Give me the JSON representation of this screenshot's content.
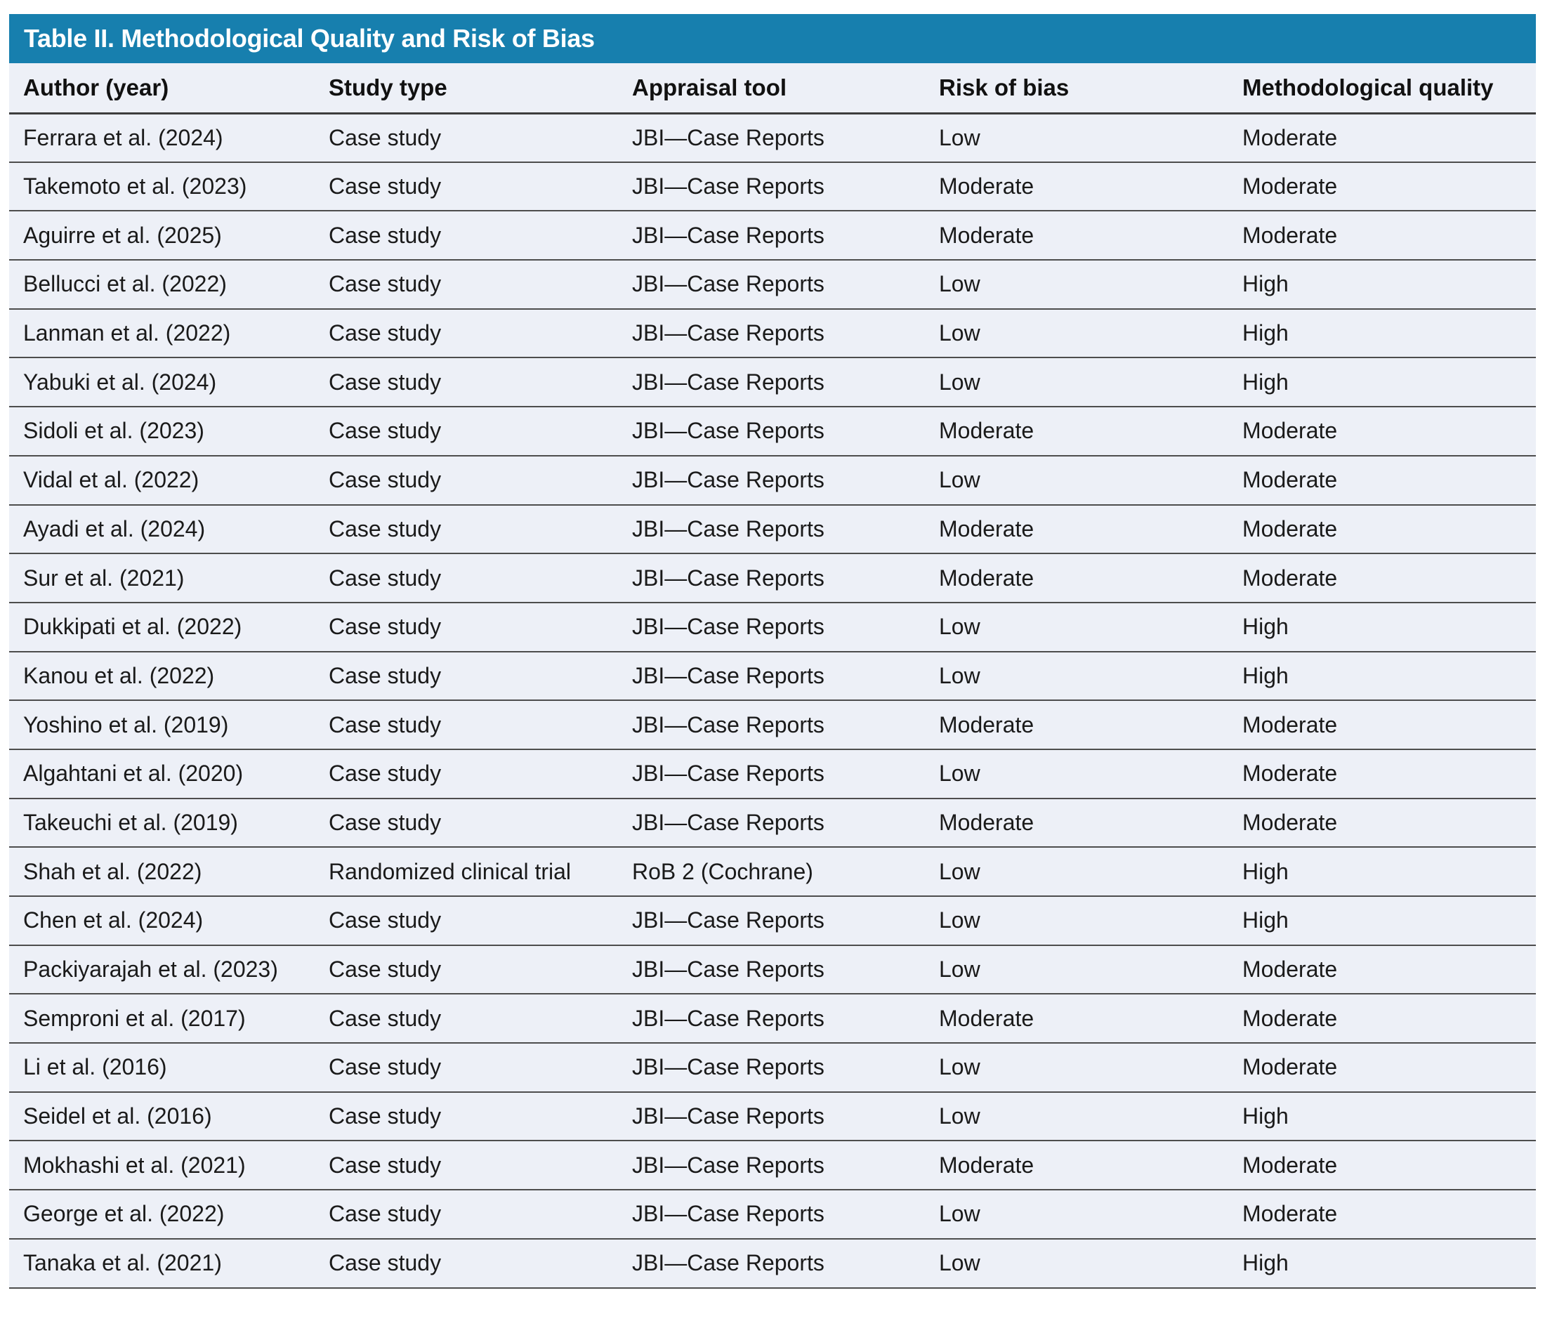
{
  "colors": {
    "title_bar_bg": "#177fae",
    "title_text": "#ffffff",
    "row_bg": "#edf0f7",
    "body_text": "#1a1a1a",
    "divider": "#4d4d4d"
  },
  "table": {
    "title": "Table II. Methodological Quality and Risk of Bias",
    "columns": [
      {
        "key": "author",
        "label": "Author (year)"
      },
      {
        "key": "study_type",
        "label": "Study type"
      },
      {
        "key": "appraisal_tool",
        "label": "Appraisal tool"
      },
      {
        "key": "risk_of_bias",
        "label": "Risk of bias"
      },
      {
        "key": "methodological_quality",
        "label": "Methodological quality"
      }
    ],
    "rows": [
      {
        "author": "Ferrara et al. (2024)",
        "study_type": "Case study",
        "appraisal_tool": "JBI—Case Reports",
        "risk_of_bias": "Low",
        "methodological_quality": "Moderate"
      },
      {
        "author": "Takemoto et al. (2023)",
        "study_type": "Case study",
        "appraisal_tool": "JBI—Case Reports",
        "risk_of_bias": "Moderate",
        "methodological_quality": "Moderate"
      },
      {
        "author": "Aguirre et al. (2025)",
        "study_type": "Case study",
        "appraisal_tool": "JBI—Case Reports",
        "risk_of_bias": "Moderate",
        "methodological_quality": "Moderate"
      },
      {
        "author": "Bellucci et al. (2022)",
        "study_type": "Case study",
        "appraisal_tool": "JBI—Case Reports",
        "risk_of_bias": "Low",
        "methodological_quality": "High"
      },
      {
        "author": "Lanman et al. (2022)",
        "study_type": "Case study",
        "appraisal_tool": "JBI—Case Reports",
        "risk_of_bias": "Low",
        "methodological_quality": "High"
      },
      {
        "author": "Yabuki et al. (2024)",
        "study_type": "Case study",
        "appraisal_tool": "JBI—Case Reports",
        "risk_of_bias": "Low",
        "methodological_quality": "High"
      },
      {
        "author": "Sidoli et al. (2023)",
        "study_type": "Case study",
        "appraisal_tool": "JBI—Case Reports",
        "risk_of_bias": "Moderate",
        "methodological_quality": "Moderate"
      },
      {
        "author": "Vidal et al. (2022)",
        "study_type": "Case study",
        "appraisal_tool": "JBI—Case Reports",
        "risk_of_bias": "Low",
        "methodological_quality": "Moderate"
      },
      {
        "author": "Ayadi et al. (2024)",
        "study_type": "Case study",
        "appraisal_tool": "JBI—Case Reports",
        "risk_of_bias": "Moderate",
        "methodological_quality": "Moderate"
      },
      {
        "author": "Sur et al. (2021)",
        "study_type": "Case study",
        "appraisal_tool": "JBI—Case Reports",
        "risk_of_bias": "Moderate",
        "methodological_quality": "Moderate"
      },
      {
        "author": "Dukkipati et al. (2022)",
        "study_type": "Case study",
        "appraisal_tool": "JBI—Case Reports",
        "risk_of_bias": "Low",
        "methodological_quality": "High"
      },
      {
        "author": "Kanou et al. (2022)",
        "study_type": "Case study",
        "appraisal_tool": "JBI—Case Reports",
        "risk_of_bias": "Low",
        "methodological_quality": "High"
      },
      {
        "author": "Yoshino et al. (2019)",
        "study_type": "Case study",
        "appraisal_tool": "JBI—Case Reports",
        "risk_of_bias": "Moderate",
        "methodological_quality": "Moderate"
      },
      {
        "author": "Algahtani et al. (2020)",
        "study_type": "Case study",
        "appraisal_tool": "JBI—Case Reports",
        "risk_of_bias": "Low",
        "methodological_quality": "Moderate"
      },
      {
        "author": "Takeuchi et al. (2019)",
        "study_type": "Case study",
        "appraisal_tool": "JBI—Case Reports",
        "risk_of_bias": "Moderate",
        "methodological_quality": "Moderate"
      },
      {
        "author": "Shah et al. (2022)",
        "study_type": "Randomized clinical trial",
        "appraisal_tool": "RoB 2 (Cochrane)",
        "risk_of_bias": "Low",
        "methodological_quality": "High"
      },
      {
        "author": "Chen et al. (2024)",
        "study_type": "Case study",
        "appraisal_tool": "JBI—Case Reports",
        "risk_of_bias": "Low",
        "methodological_quality": "High"
      },
      {
        "author": "Packiyarajah et al. (2023)",
        "study_type": "Case study",
        "appraisal_tool": "JBI—Case Reports",
        "risk_of_bias": "Low",
        "methodological_quality": "Moderate"
      },
      {
        "author": "Semproni et al. (2017)",
        "study_type": "Case study",
        "appraisal_tool": "JBI—Case Reports",
        "risk_of_bias": "Moderate",
        "methodological_quality": "Moderate"
      },
      {
        "author": "Li et al. (2016)",
        "study_type": "Case study",
        "appraisal_tool": "JBI—Case Reports",
        "risk_of_bias": "Low",
        "methodological_quality": "Moderate"
      },
      {
        "author": "Seidel et al. (2016)",
        "study_type": "Case study",
        "appraisal_tool": "JBI—Case Reports",
        "risk_of_bias": "Low",
        "methodological_quality": "High"
      },
      {
        "author": "Mokhashi et al. (2021)",
        "study_type": "Case study",
        "appraisal_tool": "JBI—Case Reports",
        "risk_of_bias": "Moderate",
        "methodological_quality": "Moderate"
      },
      {
        "author": "George et al. (2022)",
        "study_type": "Case study",
        "appraisal_tool": "JBI—Case Reports",
        "risk_of_bias": "Low",
        "methodological_quality": "Moderate"
      },
      {
        "author": "Tanaka et al. (2021)",
        "study_type": "Case study",
        "appraisal_tool": "JBI—Case Reports",
        "risk_of_bias": "Low",
        "methodological_quality": "High"
      }
    ]
  }
}
